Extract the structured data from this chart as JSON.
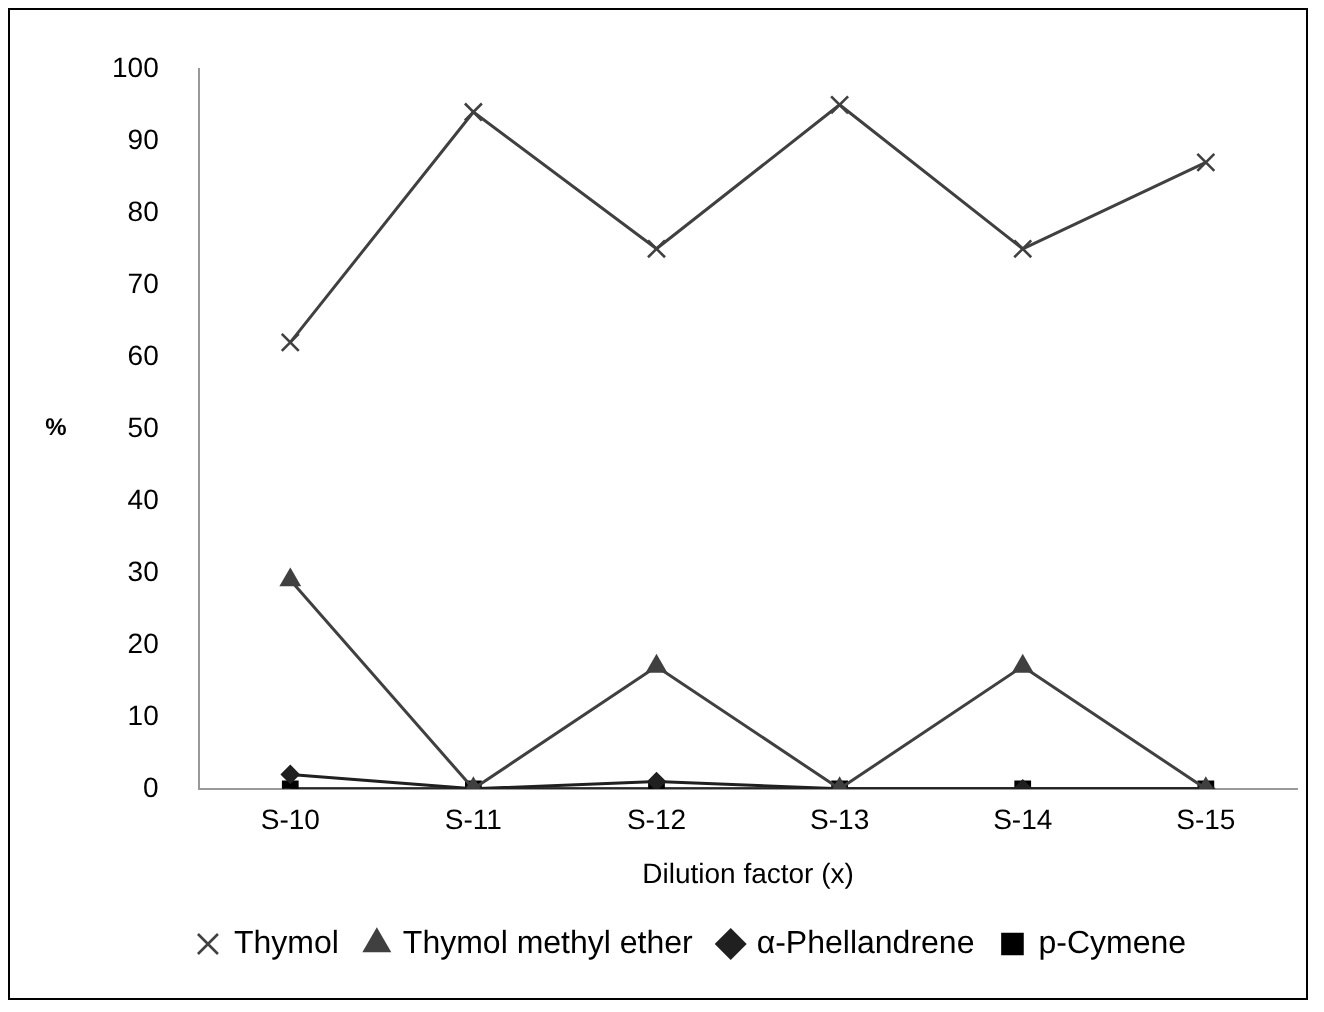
{
  "chart_data": {
    "type": "line",
    "xlabel": "Dilution factor (x)",
    "ylabel": "%",
    "categories": [
      "S-10",
      "S-11",
      "S-12",
      "S-13",
      "S-14",
      "S-15"
    ],
    "series": [
      {
        "name": "Thymol",
        "color": "#404040",
        "marker": "cross",
        "values": [
          62,
          94,
          75,
          95,
          75,
          87
        ]
      },
      {
        "name": "Thymol methyl ether",
        "color": "#404040",
        "marker": "triangle",
        "values": [
          29,
          0,
          17,
          0,
          17,
          0
        ]
      },
      {
        "name": "α-Phellandrene",
        "color": "#202020",
        "marker": "diamond",
        "values": [
          2,
          0,
          1,
          0,
          0,
          0
        ]
      },
      {
        "name": "p-Cymene",
        "color": "#000000",
        "marker": "square",
        "values": [
          0,
          0,
          0,
          0,
          0,
          0
        ]
      }
    ],
    "ylim": [
      0,
      100
    ],
    "yticks": [
      0,
      10,
      20,
      30,
      40,
      50,
      60,
      70,
      80,
      90,
      100
    ],
    "grid": false,
    "legend": "bottom",
    "line_style": "solid"
  }
}
